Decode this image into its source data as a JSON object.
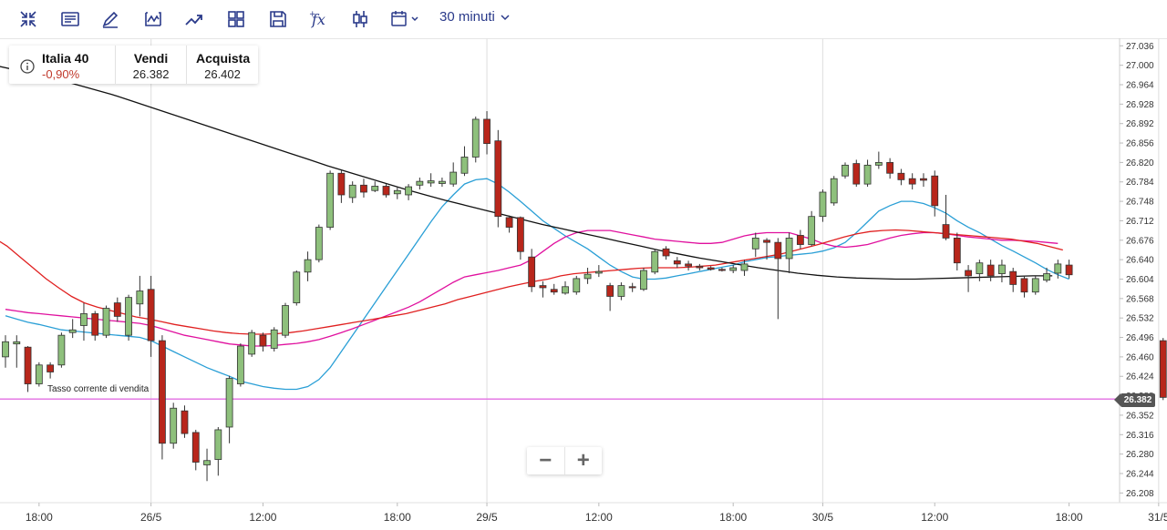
{
  "toolbar": {
    "icons": [
      "collapse-icon",
      "notes-icon",
      "pencil-icon",
      "line-chart-icon",
      "trend-icon",
      "grid-icon",
      "save-icon",
      "function-icon",
      "candles-icon",
      "calendar-icon"
    ],
    "timeframe": "30 minuti"
  },
  "instrument": {
    "name": "Italia 40",
    "change": "-0,90%",
    "sell_label": "Vendi",
    "sell_price": "26.382",
    "buy_label": "Acquista",
    "buy_price": "26.402"
  },
  "current_rate_label": "Tasso corrente di vendita",
  "current_rate_value": "26.382",
  "zoom": {
    "minus": "−",
    "plus": "+"
  },
  "colors": {
    "bull": "#8ec07c",
    "bear": "#b8261b",
    "ma_fast": "#2a9fd6",
    "ma_mid": "#e0109e",
    "ma_slow": "#e02020",
    "ma_long": "#111111",
    "rate_line": "#e36ee3"
  },
  "chart_data": {
    "type": "candlestick",
    "y_ticks": [
      "27.036",
      "27.000",
      "26.964",
      "26.928",
      "26.892",
      "26.856",
      "26.820",
      "26.784",
      "26.748",
      "26.712",
      "26.676",
      "26.640",
      "26.604",
      "26.568",
      "26.532",
      "26.496",
      "26.460",
      "26.424",
      "26.388",
      "26.352",
      "26.316",
      "26.280",
      "26.244",
      "26.208"
    ],
    "ylim": [
      26190,
      27050
    ],
    "x_labels": [
      {
        "label": "18:00",
        "i": 3
      },
      {
        "label": "26/5",
        "i": 13
      },
      {
        "label": "12:00",
        "i": 23
      },
      {
        "label": "18:00",
        "i": 35
      },
      {
        "label": "29/5",
        "i": 43
      },
      {
        "label": "12:00",
        "i": 53
      },
      {
        "label": "18:00",
        "i": 65
      },
      {
        "label": "30/5",
        "i": 73
      },
      {
        "label": "12:00",
        "i": 83
      },
      {
        "label": "18:00",
        "i": 95
      },
      {
        "label": "31/5",
        "i": 103
      }
    ],
    "day_separators": [
      13,
      43,
      73,
      103
    ],
    "candles": [
      [
        26460,
        26488,
        26440,
        26500
      ],
      [
        26484,
        26488,
        26440,
        26500
      ],
      [
        26478,
        26410,
        26395,
        26480
      ],
      [
        26410,
        26445,
        26405,
        26450
      ],
      [
        26445,
        26432,
        26420,
        26450
      ],
      [
        26445,
        26500,
        26440,
        26505
      ],
      [
        26505,
        26510,
        26495,
        26530
      ],
      [
        26518,
        26540,
        26490,
        26560
      ],
      [
        26540,
        26500,
        26490,
        26545
      ],
      [
        26500,
        26550,
        26495,
        26555
      ],
      [
        26560,
        26535,
        26525,
        26570
      ],
      [
        26500,
        26570,
        26490,
        26575
      ],
      [
        26558,
        26582,
        26535,
        26610
      ],
      [
        26585,
        26490,
        26460,
        26610
      ],
      [
        26490,
        26300,
        26270,
        26500
      ],
      [
        26300,
        26365,
        26290,
        26375
      ],
      [
        26360,
        26318,
        26310,
        26370
      ],
      [
        26320,
        26265,
        26250,
        26325
      ],
      [
        26260,
        26268,
        26230,
        26290
      ],
      [
        26270,
        26325,
        26240,
        26330
      ],
      [
        26330,
        26420,
        26300,
        26425
      ],
      [
        26410,
        26480,
        26405,
        26485
      ],
      [
        26465,
        26505,
        26460,
        26510
      ],
      [
        26500,
        26480,
        26470,
        26505
      ],
      [
        26476,
        26510,
        26470,
        26515
      ],
      [
        26500,
        26555,
        26495,
        26560
      ],
      [
        26560,
        26617,
        26555,
        26620
      ],
      [
        26617,
        26640,
        26600,
        26655
      ],
      [
        26640,
        26700,
        26635,
        26705
      ],
      [
        26700,
        26800,
        26695,
        26805
      ],
      [
        26800,
        26760,
        26745,
        26805
      ],
      [
        26755,
        26778,
        26745,
        26785
      ],
      [
        26778,
        26765,
        26755,
        26790
      ],
      [
        26768,
        26776,
        26765,
        26785
      ],
      [
        26776,
        26760,
        26755,
        26780
      ],
      [
        26762,
        26768,
        26752,
        26775
      ],
      [
        26760,
        26775,
        26750,
        26780
      ],
      [
        26778,
        26785,
        26770,
        26792
      ],
      [
        26782,
        26786,
        26775,
        26800
      ],
      [
        26781,
        26785,
        26775,
        26792
      ],
      [
        26780,
        26802,
        26775,
        26820
      ],
      [
        26800,
        26830,
        26795,
        26850
      ],
      [
        26830,
        26900,
        26820,
        26905
      ],
      [
        26900,
        26855,
        26835,
        26915
      ],
      [
        26860,
        26720,
        26700,
        26880
      ],
      [
        26718,
        26700,
        26690,
        26722
      ],
      [
        26718,
        26655,
        26640,
        26720
      ],
      [
        26645,
        26590,
        26580,
        26660
      ],
      [
        26592,
        26588,
        26570,
        26600
      ],
      [
        26585,
        26580,
        26575,
        26595
      ],
      [
        26578,
        26590,
        26575,
        26600
      ],
      [
        26580,
        26605,
        26575,
        26610
      ],
      [
        26605,
        26613,
        26595,
        26625
      ],
      [
        26615,
        26618,
        26608,
        26630
      ],
      [
        26592,
        26572,
        26545,
        26597
      ],
      [
        26572,
        26592,
        26565,
        26598
      ],
      [
        26590,
        26588,
        26580,
        26597
      ],
      [
        26585,
        26620,
        26582,
        26625
      ],
      [
        26617,
        26655,
        26613,
        26660
      ],
      [
        26660,
        26647,
        26640,
        26665
      ],
      [
        26638,
        26632,
        26625,
        26645
      ],
      [
        26632,
        26628,
        26620,
        26638
      ],
      [
        26628,
        26625,
        26620,
        26632
      ],
      [
        26625,
        26622,
        26620,
        26628
      ],
      [
        26622,
        26620,
        26618,
        26625
      ],
      [
        26620,
        26625,
        26615,
        26630
      ],
      [
        26620,
        26632,
        26610,
        26640
      ],
      [
        26660,
        26680,
        26645,
        26690
      ],
      [
        26676,
        26672,
        26640,
        26680
      ],
      [
        26672,
        26642,
        26530,
        26680
      ],
      [
        26642,
        26680,
        26615,
        26690
      ],
      [
        26685,
        26668,
        26660,
        26695
      ],
      [
        26668,
        26720,
        26665,
        26730
      ],
      [
        26720,
        26765,
        26710,
        26770
      ],
      [
        26745,
        26790,
        26740,
        26795
      ],
      [
        26795,
        26815,
        26790,
        26820
      ],
      [
        26818,
        26780,
        26775,
        26825
      ],
      [
        26780,
        26815,
        26775,
        26825
      ],
      [
        26815,
        26820,
        26808,
        26840
      ],
      [
        26820,
        26800,
        26790,
        26828
      ],
      [
        26800,
        26788,
        26778,
        26808
      ],
      [
        26790,
        26780,
        26770,
        26800
      ],
      [
        26790,
        26787,
        26775,
        26800
      ],
      [
        26795,
        26740,
        26720,
        26805
      ],
      [
        26705,
        26680,
        26676,
        26760
      ],
      [
        26680,
        26634,
        26620,
        26690
      ],
      [
        26620,
        26610,
        26580,
        26630
      ],
      [
        26614,
        26634,
        26600,
        26640
      ],
      [
        26630,
        26610,
        26600,
        26640
      ],
      [
        26614,
        26630,
        26598,
        26640
      ],
      [
        26618,
        26594,
        26580,
        26625
      ],
      [
        26605,
        26580,
        26570,
        26610
      ],
      [
        26580,
        26605,
        26575,
        26610
      ],
      [
        26602,
        26614,
        26598,
        26625
      ],
      [
        26615,
        26632,
        26605,
        26640
      ],
      [
        26630,
        26612,
        26605,
        26640
      ],
      [
        26490,
        26385,
        26380,
        26495
      ]
    ],
    "candle_index_order": "candles are [open, close, low, high] in price units; each candle i maps to slot index i",
    "ma_fast": [
      26536,
      26530,
      26524,
      26520,
      26515,
      26510,
      26508,
      26506,
      26504,
      26502,
      26500,
      26498,
      26496,
      26490,
      26480,
      26470,
      26460,
      26450,
      26440,
      26432,
      26424,
      26415,
      26410,
      26405,
      26402,
      26400,
      26400,
      26405,
      26418,
      26440,
      26470,
      26500,
      26530,
      26560,
      26590,
      26620,
      26650,
      26680,
      26710,
      26738,
      26760,
      26780,
      26788,
      26790,
      26780,
      26765,
      26748,
      26730,
      26712,
      26698,
      26684,
      26672,
      26660,
      26645,
      26630,
      26618,
      26608,
      26604,
      26604,
      26606,
      26610,
      26614,
      26618,
      26622,
      26626,
      26630,
      26636,
      26640,
      26644,
      26646,
      26648,
      26650,
      26652,
      26656,
      26662,
      26672,
      26690,
      26710,
      26730,
      26740,
      26748,
      26748,
      26744,
      26736,
      26726,
      26712,
      26700,
      26690,
      26678,
      26666,
      26656,
      26645,
      26634,
      26622,
      26612,
      26604
    ],
    "ma_mid": [
      26548,
      26545,
      26542,
      26540,
      26538,
      26536,
      26534,
      26532,
      26530,
      26528,
      26526,
      26524,
      26522,
      26518,
      26512,
      26506,
      26500,
      26496,
      26492,
      26488,
      26484,
      26482,
      26480,
      26480,
      26481,
      26483,
      26485,
      26488,
      26492,
      26498,
      26505,
      26512,
      26520,
      26528,
      26536,
      26544,
      26552,
      26562,
      26574,
      26586,
      26598,
      26608,
      26612,
      26616,
      26620,
      26625,
      26630,
      26640,
      26655,
      26670,
      26682,
      26690,
      26694,
      26694,
      26694,
      26690,
      26686,
      26682,
      26678,
      26676,
      26674,
      26672,
      26670,
      26670,
      26672,
      26678,
      26684,
      26688,
      26690,
      26690,
      26690,
      26684,
      26678,
      26670,
      26665,
      26663,
      26665,
      26668,
      26674,
      26680,
      26685,
      26688,
      26690,
      26690,
      26688,
      26685,
      26682,
      26680,
      26678,
      26676,
      26676,
      26675,
      26674,
      26672,
      26670
    ],
    "ma_slow": [
      26680,
      26665,
      26645,
      26625,
      26605,
      26588,
      26572,
      26560,
      26552,
      26546,
      26540,
      26534,
      26530,
      26525,
      26520,
      26516,
      26512,
      26508,
      26505,
      26503,
      26502,
      26502,
      26503,
      26505,
      26508,
      26512,
      26516,
      26520,
      26524,
      26528,
      26532,
      26536,
      26540,
      26546,
      26552,
      26558,
      26566,
      26572,
      26578,
      26584,
      26590,
      26595,
      26600,
      26604,
      26610,
      26614,
      26616,
      26618,
      26620,
      26622,
      26624,
      26625,
      26625,
      26625,
      26626,
      26628,
      26630,
      26634,
      26638,
      26642,
      26646,
      26650,
      26656,
      26662,
      26668,
      26675,
      26682,
      26688,
      26692,
      26694,
      26695,
      26694,
      26692,
      26690,
      26688,
      26686,
      26684,
      26682,
      26680,
      26678,
      26674,
      26670,
      26664,
      26658
    ],
    "ma_long": [
      27000,
      26992,
      26984,
      26975,
      26966,
      26956,
      26946,
      26934,
      26922,
      26910,
      26898,
      26886,
      26874,
      26862,
      26850,
      26838,
      26826,
      26814,
      26803,
      26792,
      26781,
      26770,
      26760,
      26750,
      26741,
      26732,
      26723,
      26714,
      26705,
      26697,
      26689,
      26681,
      26673,
      26665,
      26657,
      26650,
      26643,
      26637,
      26631,
      26625,
      26620,
      26615,
      26611,
      26608,
      26606,
      26605,
      26604,
      26604,
      26605,
      26606,
      26607,
      26608,
      26609,
      26610,
      26610
    ]
  }
}
